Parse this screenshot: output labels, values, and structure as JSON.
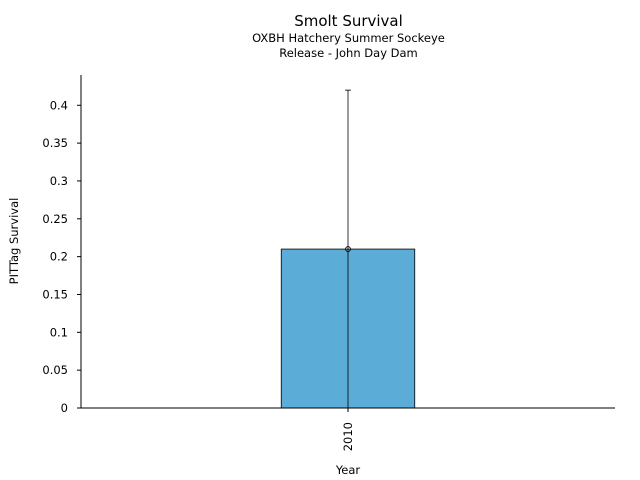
{
  "chart_data": {
    "type": "bar",
    "title": "Smolt Survival",
    "subtitle_lines": [
      "OXBH Hatchery Summer Sockeye",
      "Release - John Day Dam"
    ],
    "xlabel": "Year",
    "ylabel": "PITTag Survival",
    "categories": [
      "2010"
    ],
    "series": [
      {
        "values": [
          0.21
        ],
        "error_upper": [
          0.42
        ],
        "error_lower": [
          0.0
        ],
        "color": "#5bacd6"
      }
    ],
    "ylim": [
      0,
      0.44
    ],
    "yticks": [
      0,
      0.05,
      0.1,
      0.15,
      0.2,
      0.25,
      0.3,
      0.35,
      0.4
    ],
    "ytick_labels": [
      "0",
      "0.05",
      "0.1",
      "0.15",
      "0.2",
      "0.25",
      "0.3",
      "0.35",
      "0.4"
    ],
    "grid": false,
    "legend": "none",
    "xtick_rotation": 90
  }
}
